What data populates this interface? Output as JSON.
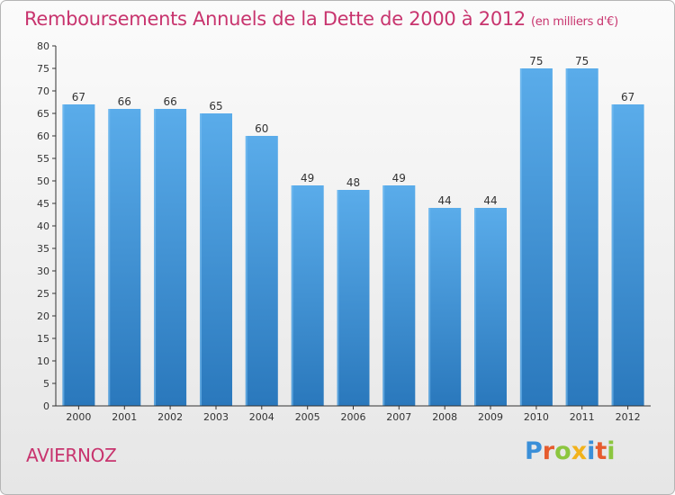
{
  "title": "Remboursements Annuels de la Dette de 2000 à 2012",
  "subtitle": "(en milliers d'€)",
  "place": "AVIERNOZ",
  "logo": {
    "letters": [
      "P",
      "r",
      "o",
      "x",
      "i",
      "t",
      "i"
    ],
    "colors": [
      "#3a8fd8",
      "#e65c2e",
      "#8cc63f",
      "#f2b21b",
      "#3a8fd8",
      "#e65c2e",
      "#8cc63f"
    ]
  },
  "colors": {
    "bar_top": "#5aacea",
    "bar_bottom": "#2a78bc",
    "axis": "#333333",
    "text": "#333333",
    "accent": "#c8346e"
  },
  "chart_data": {
    "type": "bar",
    "categories": [
      "2000",
      "2001",
      "2002",
      "2003",
      "2004",
      "2005",
      "2006",
      "2007",
      "2008",
      "2009",
      "2010",
      "2011",
      "2012"
    ],
    "values": [
      67,
      66,
      66,
      65,
      60,
      49,
      48,
      49,
      44,
      44,
      75,
      75,
      67
    ],
    "title": "Remboursements Annuels de la Dette de 2000 à 2012",
    "subtitle": "(en milliers d'€)",
    "xlabel": "",
    "ylabel": "",
    "ylim": [
      0,
      80
    ],
    "yticks": [
      0,
      5,
      10,
      15,
      20,
      25,
      30,
      35,
      40,
      45,
      50,
      55,
      60,
      65,
      70,
      75,
      80
    ],
    "data_labels": true,
    "grid": false,
    "legend": "none"
  }
}
